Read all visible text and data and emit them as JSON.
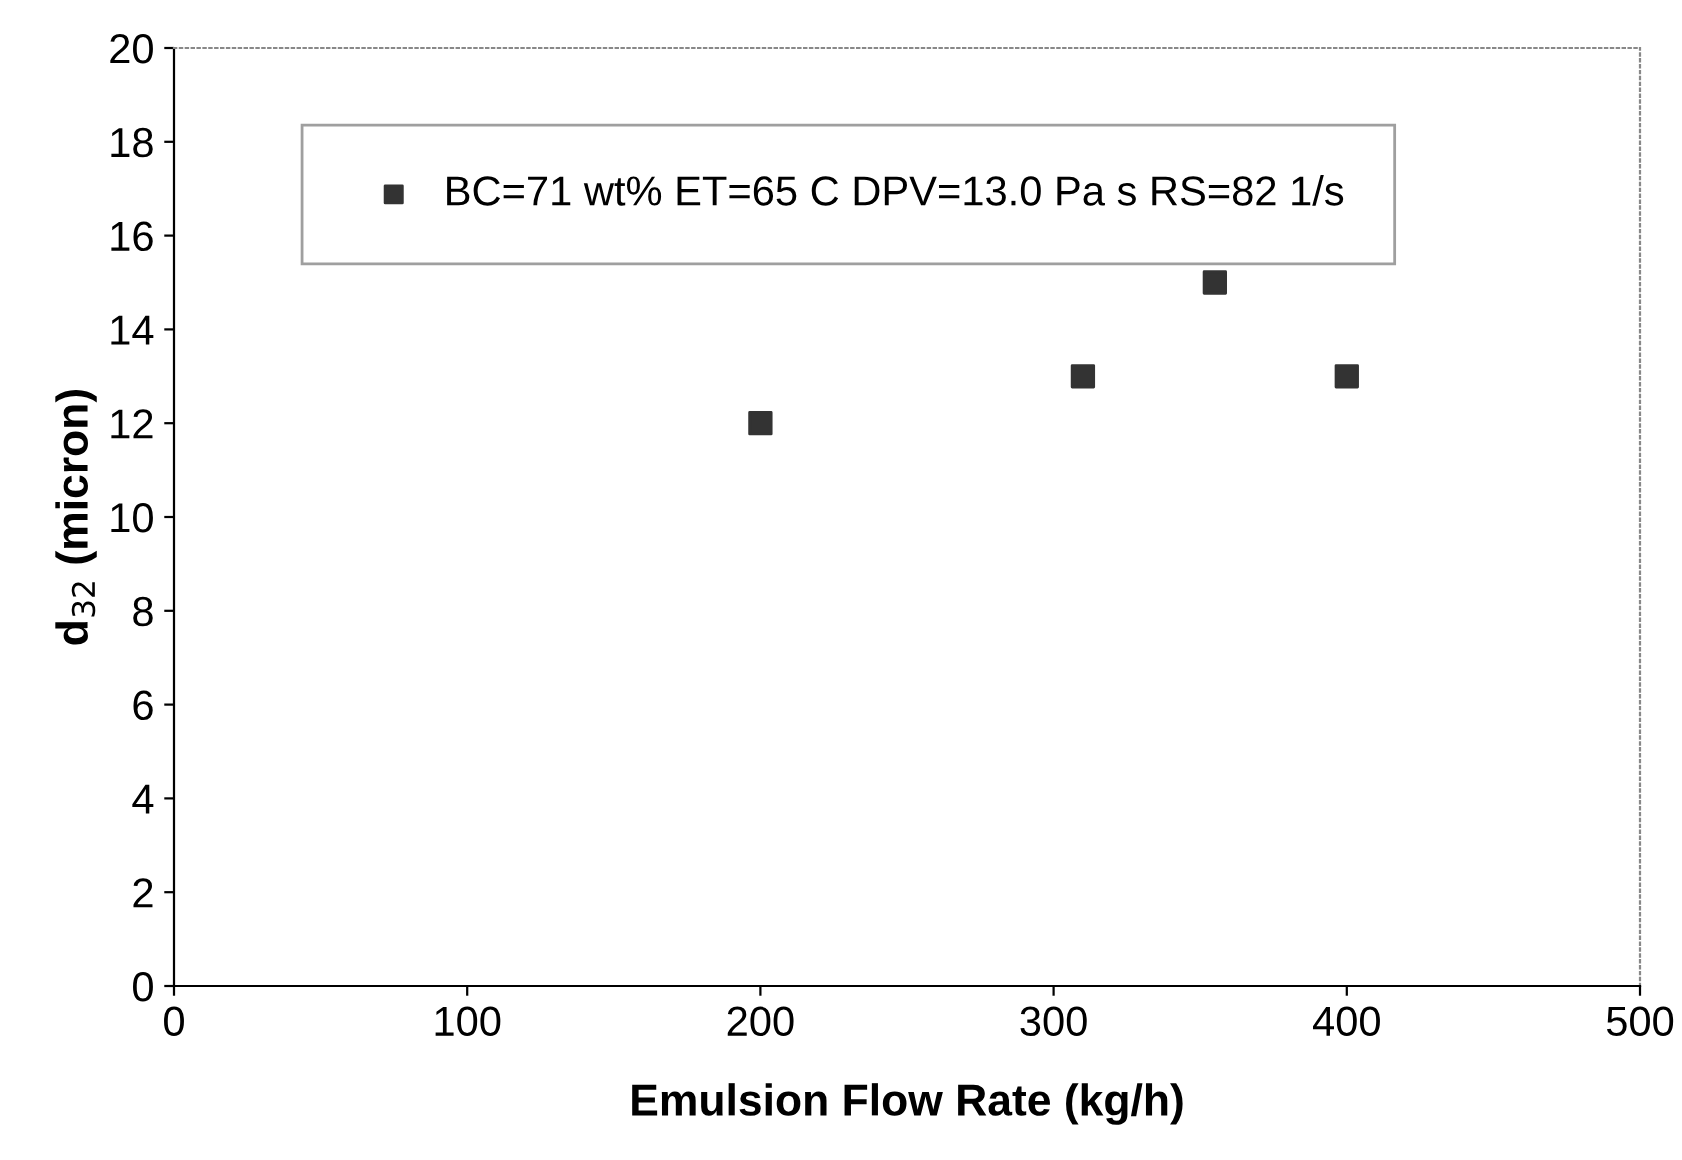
{
  "chart_data": {
    "type": "scatter",
    "xlabel": "Emulsion Flow Rate (kg/h)",
    "ylabel": "d$_{32}$ (micron)",
    "x": [
      200,
      310,
      355,
      400
    ],
    "series": [
      {
        "name": "BC=71 wt% ET=65 C DPV=13.0 Pa s RS=82 1/s",
        "color": "#333333",
        "values": [
          12,
          13,
          15,
          13
        ]
      }
    ],
    "xlim": [
      0,
      500
    ],
    "xticks": [
      0,
      100,
      200,
      300,
      400,
      500
    ],
    "ylim": [
      0,
      20
    ],
    "yticks": [
      0,
      2,
      4,
      6,
      8,
      10,
      12,
      14,
      16,
      18,
      20
    ],
    "grid": false,
    "legend": "top",
    "marker": "square"
  }
}
